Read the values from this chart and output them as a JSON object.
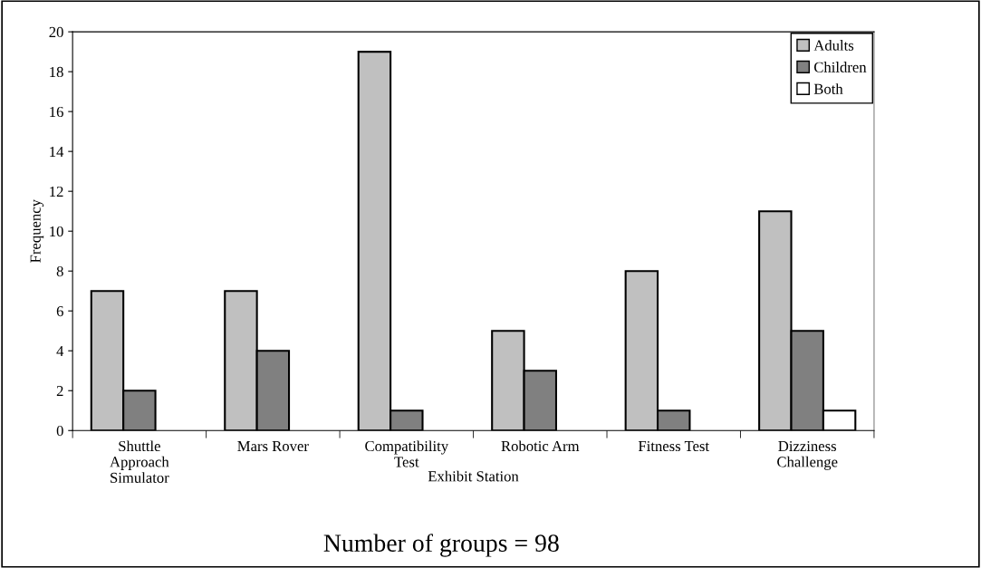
{
  "chart_data": {
    "type": "bar",
    "xlabel": "Exhibit Station",
    "ylabel": "Frequency",
    "categories": [
      "Shuttle\nApproach\nSimulator",
      "Mars Rover",
      "Compatibility\nTest",
      "Robotic Arm",
      "Fitness Test",
      "Dizziness\nChallenge"
    ],
    "series": [
      {
        "name": "Adults",
        "color": "#c0c0c0",
        "values": [
          7,
          7,
          19,
          5,
          8,
          11
        ]
      },
      {
        "name": "Children",
        "color": "#808080",
        "values": [
          2,
          4,
          1,
          3,
          1,
          5
        ]
      },
      {
        "name": "Both",
        "color": "#ffffff",
        "values": [
          null,
          null,
          null,
          null,
          null,
          1
        ]
      }
    ],
    "ylim": [
      0,
      20
    ],
    "yticks": [
      0,
      2,
      4,
      6,
      8,
      10,
      12,
      14,
      16,
      18,
      20
    ],
    "grid": false,
    "legend": "top right",
    "annotations": [
      "Number of groups = 98"
    ]
  }
}
